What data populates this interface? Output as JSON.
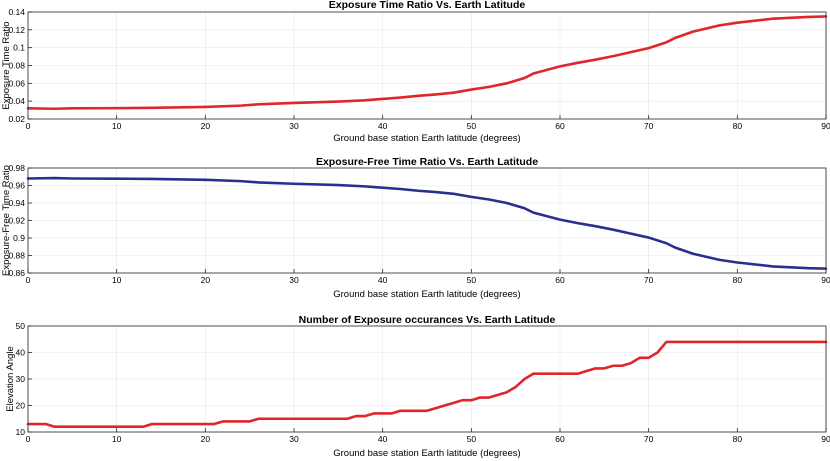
{
  "chart_data": [
    {
      "type": "line",
      "title": "Exposure Time Ratio Vs. Earth Latitude",
      "xlabel": "Ground base station Earth latitude (degrees)",
      "ylabel": "Exposure Time Ratio",
      "xlim": [
        0,
        90
      ],
      "ylim": [
        0.02,
        0.14
      ],
      "xticks": [
        0,
        10,
        20,
        30,
        40,
        50,
        60,
        70,
        80,
        90
      ],
      "xtick_labels": [
        "0",
        "10",
        "20",
        "30",
        "40",
        "50",
        "60",
        "70",
        "80",
        "90"
      ],
      "yticks": [
        0.02,
        0.04,
        0.06,
        0.08,
        0.1,
        0.12,
        0.14
      ],
      "ytick_labels": [
        "0.02",
        "0.04",
        "0.06",
        "0.08",
        "0.1",
        "0.12",
        "0.14"
      ],
      "grid": true,
      "series": [
        {
          "color": "#e0262b",
          "x": [
            0,
            3,
            5,
            10,
            14,
            20,
            24,
            26,
            30,
            35,
            38,
            40,
            42,
            44,
            46,
            48,
            50,
            52,
            54,
            56,
            57,
            60,
            62,
            64,
            66,
            68,
            70,
            72,
            73,
            75,
            78,
            80,
            84,
            88,
            90
          ],
          "y": [
            0.032,
            0.0315,
            0.032,
            0.0322,
            0.0325,
            0.0335,
            0.035,
            0.0365,
            0.038,
            0.0395,
            0.041,
            0.0425,
            0.044,
            0.046,
            0.0475,
            0.0495,
            0.053,
            0.056,
            0.06,
            0.066,
            0.071,
            0.079,
            0.083,
            0.0865,
            0.0905,
            0.095,
            0.0995,
            0.106,
            0.111,
            0.118,
            0.125,
            0.128,
            0.1325,
            0.1345,
            0.135
          ]
        }
      ]
    },
    {
      "type": "line",
      "title": "Exposure-Free Time Ratio Vs. Earth Latitude",
      "xlabel": "Ground base station Earth latitude (degrees)",
      "ylabel": "Exposure-Free Time Ratio",
      "xlim": [
        0,
        90
      ],
      "ylim": [
        0.86,
        0.98
      ],
      "xticks": [
        0,
        10,
        20,
        30,
        40,
        50,
        60,
        70,
        80,
        90
      ],
      "xtick_labels": [
        "0",
        "10",
        "20",
        "30",
        "40",
        "50",
        "60",
        "70",
        "80",
        "90"
      ],
      "yticks": [
        0.86,
        0.88,
        0.9,
        0.92,
        0.94,
        0.96,
        0.98
      ],
      "ytick_labels": [
        "0.86",
        "0.88",
        "0.9",
        "0.92",
        "0.94",
        "0.96",
        "0.98"
      ],
      "grid": true,
      "series": [
        {
          "color": "#2a2f8f",
          "x": [
            0,
            3,
            5,
            10,
            14,
            20,
            24,
            26,
            30,
            35,
            38,
            40,
            42,
            44,
            46,
            48,
            50,
            52,
            54,
            56,
            57,
            60,
            62,
            64,
            66,
            68,
            70,
            72,
            73,
            75,
            78,
            80,
            84,
            88,
            90
          ],
          "y": [
            0.968,
            0.9685,
            0.968,
            0.9678,
            0.9675,
            0.9665,
            0.965,
            0.9635,
            0.962,
            0.9605,
            0.959,
            0.9575,
            0.956,
            0.954,
            0.9525,
            0.9505,
            0.947,
            0.944,
            0.94,
            0.934,
            0.929,
            0.921,
            0.917,
            0.9135,
            0.9095,
            0.905,
            0.9005,
            0.894,
            0.889,
            0.882,
            0.875,
            0.872,
            0.8675,
            0.8655,
            0.865
          ]
        }
      ]
    },
    {
      "type": "line",
      "title": "Number of Exposure occurances Vs. Earth Latitude",
      "xlabel": "Ground base station Earth latitude (degrees)",
      "ylabel": "Elevation Angle",
      "xlim": [
        0,
        90
      ],
      "ylim": [
        10,
        50
      ],
      "xticks": [
        0,
        10,
        20,
        30,
        40,
        50,
        60,
        70,
        80,
        90
      ],
      "xtick_labels": [
        "0",
        "10",
        "20",
        "30",
        "40",
        "50",
        "60",
        "70",
        "80",
        "90"
      ],
      "yticks": [
        10,
        20,
        30,
        40,
        50
      ],
      "ytick_labels": [
        "10",
        "20",
        "30",
        "40",
        "50"
      ],
      "grid": true,
      "series": [
        {
          "color": "#e0262b",
          "x": [
            0,
            2,
            3,
            13,
            14,
            21,
            22,
            25,
            26,
            36,
            37,
            38,
            39,
            41,
            42,
            45,
            46,
            47,
            48,
            49,
            50,
            51,
            52,
            53,
            54,
            55,
            56,
            57,
            62,
            63,
            64,
            65,
            66,
            67,
            68,
            69,
            70,
            71,
            72,
            73,
            90
          ],
          "y": [
            13,
            13,
            12,
            12,
            13,
            13,
            14,
            14,
            15,
            15,
            16,
            16,
            17,
            17,
            18,
            18,
            19,
            20,
            21,
            22,
            22,
            23,
            23,
            24,
            25,
            27,
            30,
            32,
            32,
            33,
            34,
            34,
            35,
            35,
            36,
            38,
            38,
            40,
            44,
            44,
            44
          ]
        }
      ]
    }
  ]
}
